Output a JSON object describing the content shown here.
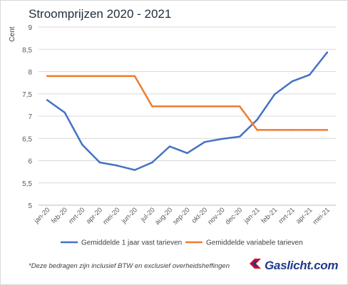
{
  "chart_data": {
    "type": "line",
    "title": "Stroomprijzen 2020 - 2021",
    "ylabel": "Cent",
    "xlabel": "",
    "ylim": [
      5,
      9
    ],
    "yticks": [
      "5",
      "5,5",
      "6",
      "6,5",
      "7",
      "7,5",
      "8",
      "8,5",
      "9"
    ],
    "categories": [
      "jan-20",
      "feb-20",
      "mrt-20",
      "apr-20",
      "mei-20",
      "jun-20",
      "jul-20",
      "aug-20",
      "sep-20",
      "okt-20",
      "nov-20",
      "dec-20",
      "jan-21",
      "feb-21",
      "mrt-21",
      "apr-21",
      "mei-21"
    ],
    "grid": true,
    "legend": "bottom",
    "series": [
      {
        "name": "Gemiddelde 1 jaar vast tarieven",
        "color": "#4472c4",
        "values": [
          7.36,
          7.08,
          6.36,
          5.96,
          5.89,
          5.79,
          5.96,
          6.32,
          6.17,
          6.42,
          6.49,
          6.54,
          6.92,
          7.49,
          7.78,
          7.93,
          8.43
        ]
      },
      {
        "name": "Gemiddelde variabele tarieven",
        "color": "#ed7d31",
        "values": [
          7.9,
          7.9,
          7.9,
          7.9,
          7.9,
          7.9,
          7.22,
          7.22,
          7.22,
          7.22,
          7.22,
          7.22,
          6.69,
          6.69,
          6.69,
          6.69,
          6.69
        ]
      }
    ]
  },
  "footnote": "*Deze bedragen zijn inclusief BTW en exclusief overheidsheffingen",
  "brand": {
    "name": "Gaslicht.com",
    "icon": "flame-logo-icon"
  }
}
